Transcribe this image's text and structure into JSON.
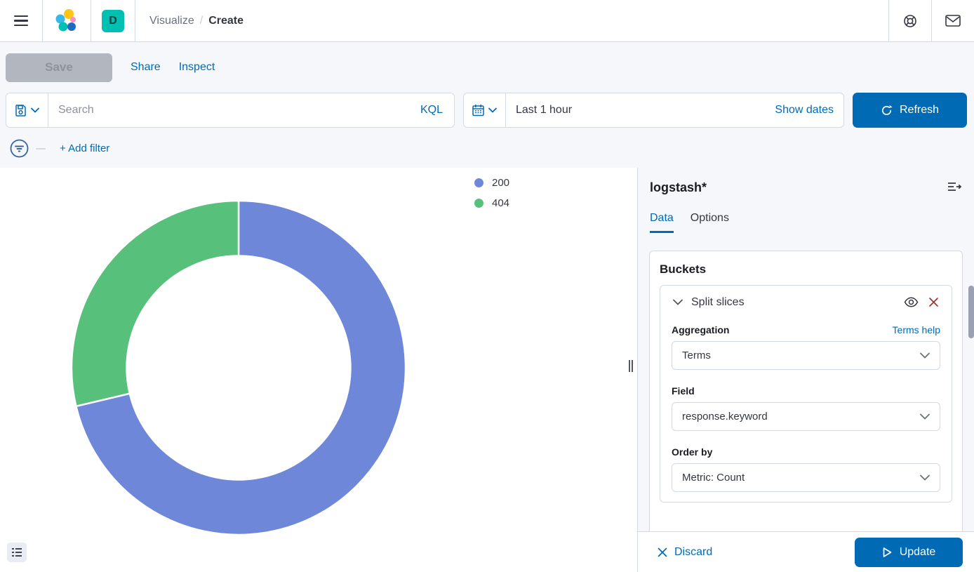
{
  "header": {
    "space_badge": "D",
    "breadcrumb": {
      "section": "Visualize",
      "separator": "/",
      "current": "Create"
    }
  },
  "toolbar": {
    "save_label": "Save",
    "share_label": "Share",
    "inspect_label": "Inspect"
  },
  "query_bar": {
    "search_placeholder": "Search",
    "language_label": "KQL",
    "time_range": "Last 1 hour",
    "show_dates_label": "Show dates",
    "refresh_label": "Refresh"
  },
  "filter_bar": {
    "add_filter_label": "+ Add filter"
  },
  "chart_data": {
    "type": "pie",
    "subtype": "donut",
    "title": "",
    "labels": [
      "200",
      "404"
    ],
    "slices": [
      {
        "label": "200",
        "color": "#6F87D8",
        "share_pct": 71.3
      },
      {
        "label": "404",
        "color": "#57C17B",
        "share_pct": 28.7
      }
    ],
    "start_angle_deg": 0,
    "inner_radius_ratio": 0.67,
    "legend_position": "top-right",
    "grid": false
  },
  "side_panel": {
    "index_pattern": "logstash*",
    "tabs": [
      {
        "label": "Data",
        "active": true
      },
      {
        "label": "Options",
        "active": false
      }
    ],
    "buckets": {
      "title": "Buckets",
      "bucket_item_title": "Split slices",
      "aggregation": {
        "label": "Aggregation",
        "value": "Terms",
        "help_label": "Terms help"
      },
      "field": {
        "label": "Field",
        "value": "response.keyword"
      },
      "order_by": {
        "label": "Order by",
        "value": "Metric: Count"
      }
    },
    "footer": {
      "discard_label": "Discard",
      "update_label": "Update"
    }
  },
  "colors": {
    "primary": "#006BB4",
    "accent-teal": "#00BFB3",
    "danger": "#BD271E",
    "text": "#343741",
    "text-subdued": "#69707D",
    "border": "#D3DAE6",
    "page-bg": "#F5F7FA",
    "disabled-btn-bg": "#B2B6BE"
  }
}
